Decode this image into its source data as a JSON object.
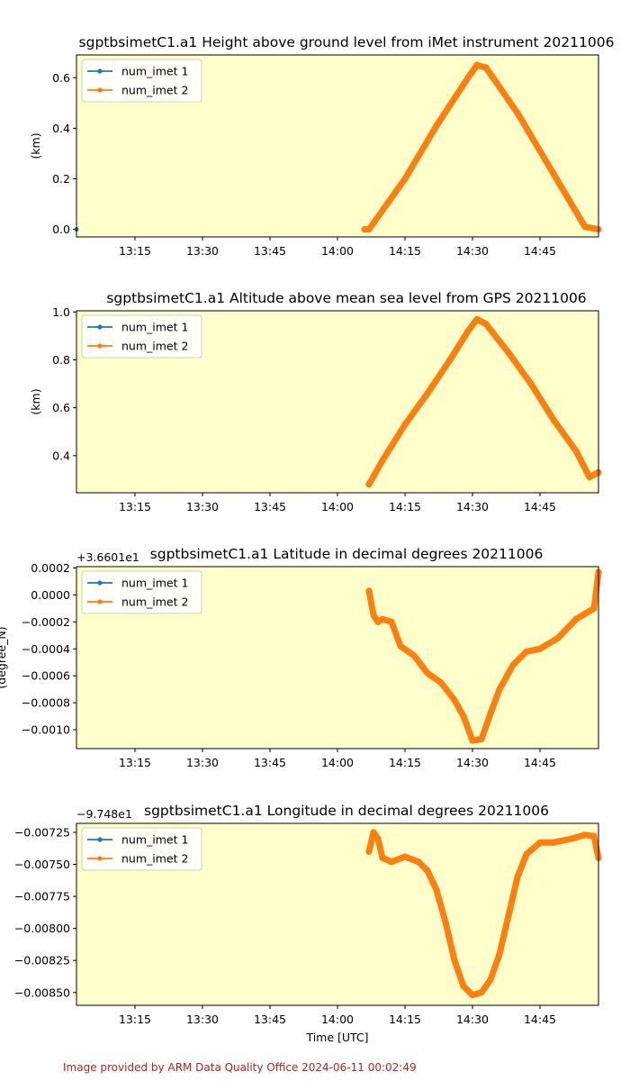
{
  "footer": "Image provided by ARM Data Quality Office 2024-06-11 00:02:49",
  "colors": {
    "background": "#ffffcc",
    "series1": "#1f77b4",
    "series2": "#ff7f0e"
  },
  "x_tick_labels": [
    "13:15",
    "13:30",
    "13:45",
    "14:00",
    "14:15",
    "14:30",
    "14:45"
  ],
  "x_range": [
    "13:02",
    "14:58"
  ],
  "chart_data": [
    {
      "type": "line",
      "title": "sgptbsimetC1.a1 Height above ground level from iMet instrument 20211006",
      "ylabel": "(km)",
      "xlabel": "",
      "ylim": [
        -0.03,
        0.69
      ],
      "yticks": [
        0.0,
        0.2,
        0.4,
        0.6
      ],
      "ytick_labels": [
        "0.0",
        "0.2",
        "0.4",
        "0.6"
      ],
      "offset_label": "",
      "legend_position": "upper-left",
      "series": [
        {
          "name": "num_imet 1",
          "points": [
            [
              "13:02",
              0.0
            ]
          ]
        },
        {
          "name": "num_imet 2",
          "points": [
            [
              "14:06",
              0.0
            ],
            [
              "14:07",
              0.0
            ],
            [
              "14:15",
              0.2
            ],
            [
              "14:22",
              0.41
            ],
            [
              "14:29",
              0.6
            ],
            [
              "14:31",
              0.65
            ],
            [
              "14:33",
              0.64
            ],
            [
              "14:40",
              0.46
            ],
            [
              "14:48",
              0.22
            ],
            [
              "14:55",
              0.01
            ],
            [
              "14:58",
              0.0
            ]
          ]
        }
      ]
    },
    {
      "type": "line",
      "title": "sgptbsimetC1.a1 Altitude above mean sea level from GPS 20211006",
      "ylabel": "(km)",
      "xlabel": "",
      "ylim": [
        0.245,
        1.005
      ],
      "yticks": [
        0.4,
        0.6,
        0.8,
        1.0
      ],
      "ytick_labels": [
        "0.4",
        "0.6",
        "0.8",
        "1.0"
      ],
      "offset_label": "",
      "legend_position": "upper-left",
      "series": [
        {
          "name": "num_imet 1",
          "points": []
        },
        {
          "name": "num_imet 2",
          "points": [
            [
              "14:07",
              0.28
            ],
            [
              "14:10",
              0.38
            ],
            [
              "14:13",
              0.47
            ],
            [
              "14:15",
              0.53
            ],
            [
              "14:20",
              0.66
            ],
            [
              "14:25",
              0.8
            ],
            [
              "14:29",
              0.92
            ],
            [
              "14:31",
              0.97
            ],
            [
              "14:33",
              0.95
            ],
            [
              "14:38",
              0.83
            ],
            [
              "14:43",
              0.7
            ],
            [
              "14:48",
              0.55
            ],
            [
              "14:53",
              0.42
            ],
            [
              "14:56",
              0.31
            ],
            [
              "14:58",
              0.33
            ]
          ]
        }
      ]
    },
    {
      "type": "line",
      "title": "sgptbsimetC1.a1 Latitude in decimal degrees 20211006",
      "ylabel": "(degree_N)",
      "xlabel": "",
      "ylim": [
        -0.00114,
        0.00021
      ],
      "yticks": [
        -0.001,
        -0.0008,
        -0.0006,
        -0.0004,
        -0.0002,
        0.0,
        0.0002
      ],
      "ytick_labels": [
        "−0.0010",
        "−0.0008",
        "−0.0006",
        "−0.0004",
        "−0.0002",
        "0.0000",
        "0.0002"
      ],
      "offset_label": "+3.6601e1",
      "legend_position": "upper-left",
      "series": [
        {
          "name": "num_imet 1",
          "points": []
        },
        {
          "name": "num_imet 2",
          "points": [
            [
              "14:07",
              3e-05
            ],
            [
              "14:08",
              -0.00015
            ],
            [
              "14:09",
              -0.0002
            ],
            [
              "14:10",
              -0.00018
            ],
            [
              "14:12",
              -0.0002
            ],
            [
              "14:14",
              -0.00038
            ],
            [
              "14:17",
              -0.00045
            ],
            [
              "14:20",
              -0.00058
            ],
            [
              "14:23",
              -0.00065
            ],
            [
              "14:26",
              -0.00078
            ],
            [
              "14:28",
              -0.0009
            ],
            [
              "14:30",
              -0.00108
            ],
            [
              "14:32",
              -0.00107
            ],
            [
              "14:34",
              -0.00088
            ],
            [
              "14:36",
              -0.0007
            ],
            [
              "14:39",
              -0.00052
            ],
            [
              "14:42",
              -0.00042
            ],
            [
              "14:45",
              -0.0004
            ],
            [
              "14:49",
              -0.00032
            ],
            [
              "14:53",
              -0.00018
            ],
            [
              "14:56",
              -0.00012
            ],
            [
              "14:57",
              -0.0001
            ],
            [
              "14:58",
              0.00017
            ]
          ]
        }
      ]
    },
    {
      "type": "line",
      "title": "sgptbsimetC1.a1 Longitude in decimal degrees 20211006",
      "ylabel": "",
      "xlabel": "Time [UTC]",
      "ylim": [
        -0.0086,
        -0.00718
      ],
      "yticks": [
        -0.0085,
        -0.00825,
        -0.008,
        -0.00775,
        -0.0075,
        -0.00725
      ],
      "ytick_labels": [
        "−0.00850",
        "−0.00825",
        "−0.00800",
        "−0.00775",
        "−0.00750",
        "−0.00725"
      ],
      "offset_label": "−9.748e1",
      "legend_position": "upper-left",
      "series": [
        {
          "name": "num_imet 1",
          "points": []
        },
        {
          "name": "num_imet 2",
          "points": [
            [
              "14:07",
              -0.0074
            ],
            [
              "14:08",
              -0.00725
            ],
            [
              "14:09",
              -0.0073
            ],
            [
              "14:10",
              -0.00745
            ],
            [
              "14:12",
              -0.00748
            ],
            [
              "14:15",
              -0.00744
            ],
            [
              "14:18",
              -0.00748
            ],
            [
              "14:20",
              -0.00755
            ],
            [
              "14:22",
              -0.0077
            ],
            [
              "14:24",
              -0.00795
            ],
            [
              "14:26",
              -0.00825
            ],
            [
              "14:28",
              -0.00845
            ],
            [
              "14:30",
              -0.00852
            ],
            [
              "14:32",
              -0.0085
            ],
            [
              "14:34",
              -0.0084
            ],
            [
              "14:36",
              -0.0082
            ],
            [
              "14:38",
              -0.0079
            ],
            [
              "14:40",
              -0.0076
            ],
            [
              "14:42",
              -0.00742
            ],
            [
              "14:45",
              -0.00733
            ],
            [
              "14:48",
              -0.00733
            ],
            [
              "14:52",
              -0.0073
            ],
            [
              "14:55",
              -0.00727
            ],
            [
              "14:57",
              -0.00728
            ],
            [
              "14:58",
              -0.00745
            ]
          ]
        }
      ]
    }
  ]
}
